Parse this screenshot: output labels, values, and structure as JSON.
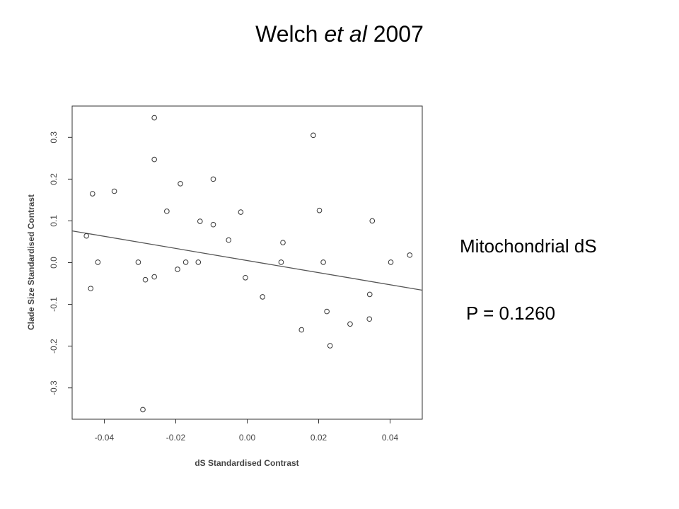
{
  "slide": {
    "title_prefix": "Welch ",
    "title_italic": "et al",
    "title_suffix": " 2007",
    "series_label": "Mitochondrial dS",
    "p_value_text": "P = 0.1260"
  },
  "chart_data": {
    "type": "scatter",
    "xlabel": "dS Standardised Contrast",
    "ylabel": "Clade Size Standardised Contrast",
    "xlim": [
      -0.049,
      0.049
    ],
    "ylim": [
      -0.375,
      0.375
    ],
    "x_ticks": [
      -0.04,
      -0.02,
      0.0,
      0.02,
      0.04
    ],
    "x_tick_labels": [
      "-0.04",
      "-0.02",
      "0.00",
      "0.02",
      "0.04"
    ],
    "y_ticks": [
      -0.3,
      -0.2,
      -0.1,
      0.0,
      0.1,
      0.2,
      0.3
    ],
    "y_tick_labels": [
      "-0.3",
      "-0.2",
      "-0.1",
      "0.0",
      "0.1",
      "0.2",
      "0.3"
    ],
    "grid": false,
    "regression_line": {
      "intercept": 0.005,
      "slope": -1.45
    },
    "points": [
      {
        "x": -0.045,
        "y": 0.064
      },
      {
        "x": -0.0438,
        "y": -0.062
      },
      {
        "x": -0.0433,
        "y": 0.165
      },
      {
        "x": -0.0418,
        "y": 0.001
      },
      {
        "x": -0.0372,
        "y": 0.171
      },
      {
        "x": -0.0305,
        "y": 0.001
      },
      {
        "x": -0.0292,
        "y": -0.352
      },
      {
        "x": -0.0285,
        "y": -0.041
      },
      {
        "x": -0.026,
        "y": 0.347
      },
      {
        "x": -0.026,
        "y": 0.247
      },
      {
        "x": -0.026,
        "y": -0.034
      },
      {
        "x": -0.0225,
        "y": 0.123
      },
      {
        "x": -0.0195,
        "y": -0.016
      },
      {
        "x": -0.0187,
        "y": 0.189
      },
      {
        "x": -0.0172,
        "y": 0.001
      },
      {
        "x": -0.0137,
        "y": 0.001
      },
      {
        "x": -0.0132,
        "y": 0.099
      },
      {
        "x": -0.0095,
        "y": 0.2
      },
      {
        "x": -0.0095,
        "y": 0.091
      },
      {
        "x": -0.0052,
        "y": 0.054
      },
      {
        "x": -0.0018,
        "y": 0.121
      },
      {
        "x": -0.0005,
        "y": -0.036
      },
      {
        "x": 0.0043,
        "y": -0.082
      },
      {
        "x": 0.0095,
        "y": 0.001
      },
      {
        "x": 0.01,
        "y": 0.048
      },
      {
        "x": 0.0152,
        "y": -0.161
      },
      {
        "x": 0.0185,
        "y": 0.305
      },
      {
        "x": 0.0202,
        "y": 0.125
      },
      {
        "x": 0.0213,
        "y": 0.001
      },
      {
        "x": 0.0223,
        "y": -0.117
      },
      {
        "x": 0.0232,
        "y": -0.199
      },
      {
        "x": 0.0288,
        "y": -0.147
      },
      {
        "x": 0.0342,
        "y": -0.135
      },
      {
        "x": 0.0343,
        "y": -0.076
      },
      {
        "x": 0.035,
        "y": 0.1
      },
      {
        "x": 0.0402,
        "y": 0.001
      },
      {
        "x": 0.0455,
        "y": 0.018
      }
    ]
  }
}
